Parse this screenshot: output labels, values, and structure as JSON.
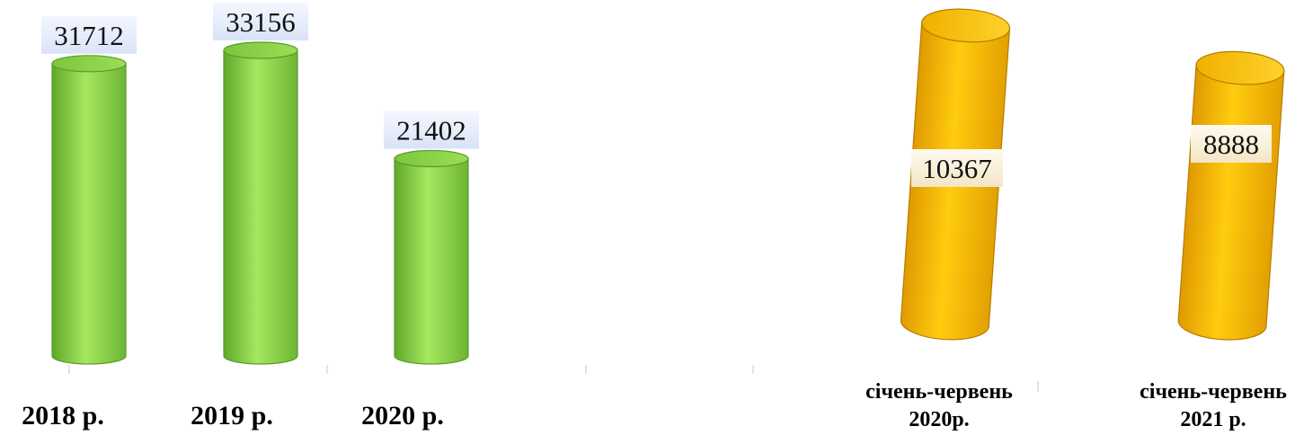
{
  "chart_data": [
    {
      "type": "bar",
      "style": "cylinder",
      "categories": [
        "2018 р.",
        "2019 р.",
        "2020 р."
      ],
      "values": [
        31712,
        33156,
        21402
      ],
      "color": "#8ed84a"
    },
    {
      "type": "bar",
      "style": "cylinder",
      "categories": [
        [
          "січень-червень",
          "2020р."
        ],
        [
          "січень-червень",
          "2021 р."
        ]
      ],
      "values": [
        10367,
        8888
      ],
      "color": "#f5b800"
    }
  ]
}
